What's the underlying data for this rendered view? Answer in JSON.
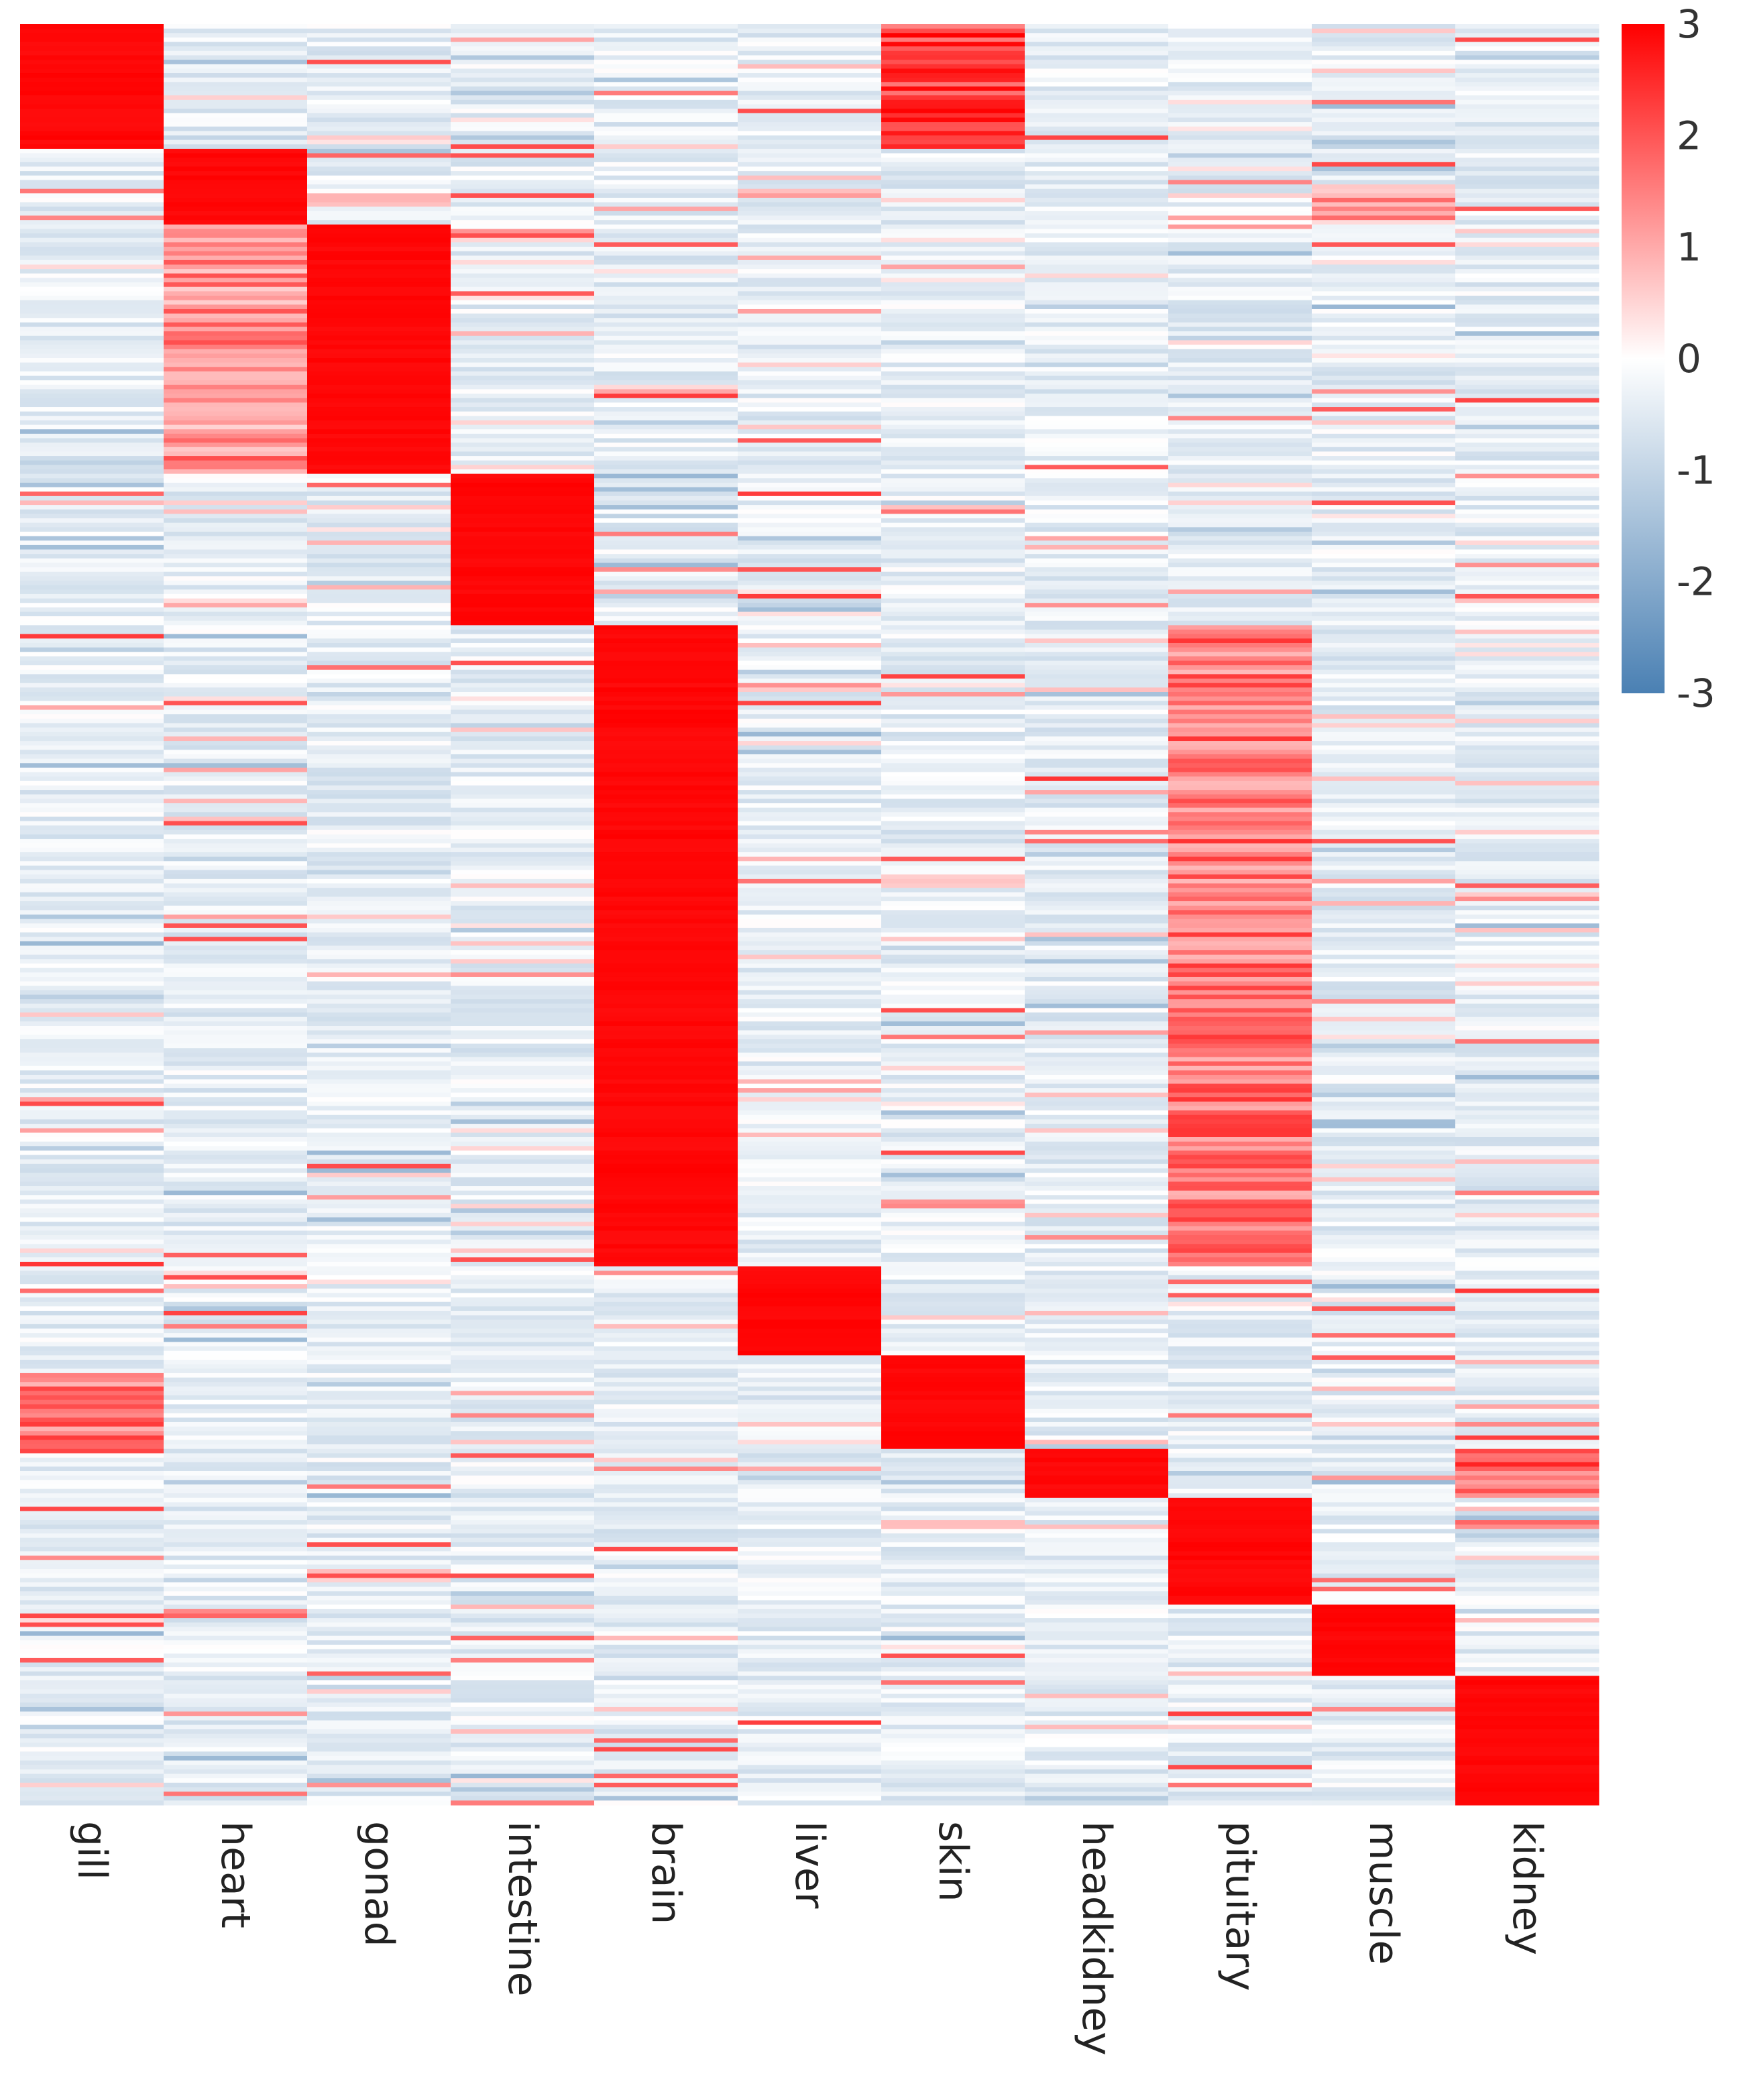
{
  "chart_data": {
    "type": "heatmap",
    "title": "",
    "xlabel": "",
    "ylabel": "",
    "columns": [
      "gill",
      "heart",
      "gonad",
      "intestine",
      "brain",
      "liver",
      "skin",
      "headkidney",
      "pituitary",
      "muscle",
      "kidney"
    ],
    "row_count": 400,
    "value_range": [
      -3,
      3
    ],
    "colorbar": {
      "ticks": [
        3,
        2,
        1,
        0,
        -1,
        -2,
        -3
      ],
      "tick_labels": [
        "3",
        "2",
        "1",
        "0",
        "-1",
        "-2",
        "-3"
      ],
      "low_color": "#4a80b3",
      "mid_color": "#ffffff",
      "high_color": "#ff0000"
    },
    "tissue_specific_blocks": [
      {
        "tissue": "gill",
        "rows": [
          0,
          27
        ],
        "value": 3
      },
      {
        "tissue": "heart",
        "rows": [
          28,
          44
        ],
        "value": 3
      },
      {
        "tissue": "gonad",
        "rows": [
          45,
          100
        ],
        "value": 3
      },
      {
        "tissue": "intestine",
        "rows": [
          101,
          134
        ],
        "value": 3
      },
      {
        "tissue": "brain",
        "rows": [
          135,
          278
        ],
        "value": 3
      },
      {
        "tissue": "liver",
        "rows": [
          279,
          298
        ],
        "value": 3
      },
      {
        "tissue": "skin",
        "rows": [
          299,
          319
        ],
        "value": 3
      },
      {
        "tissue": "headkidney",
        "rows": [
          320,
          330
        ],
        "value": 3
      },
      {
        "tissue": "pituitary",
        "rows": [
          331,
          354
        ],
        "value": 3
      },
      {
        "tissue": "muscle",
        "rows": [
          355,
          370
        ],
        "value": 3
      },
      {
        "tissue": "kidney",
        "rows": [
          371,
          399
        ],
        "value": 3
      }
    ],
    "secondary_blocks": [
      {
        "tissue": "skin",
        "rows": [
          0,
          27
        ],
        "value": 2.2
      },
      {
        "tissue": "heart",
        "rows": [
          45,
          100
        ],
        "value": 1.3
      },
      {
        "tissue": "pituitary",
        "rows": [
          135,
          278
        ],
        "value": 1.6
      },
      {
        "tissue": "gill",
        "rows": [
          303,
          320
        ],
        "value": 1.6
      },
      {
        "tissue": "kidney",
        "rows": [
          320,
          330
        ],
        "value": 1.8
      },
      {
        "tissue": "muscle",
        "rows": [
          36,
          44
        ],
        "value": 1.0
      }
    ],
    "background_value": -0.4
  }
}
